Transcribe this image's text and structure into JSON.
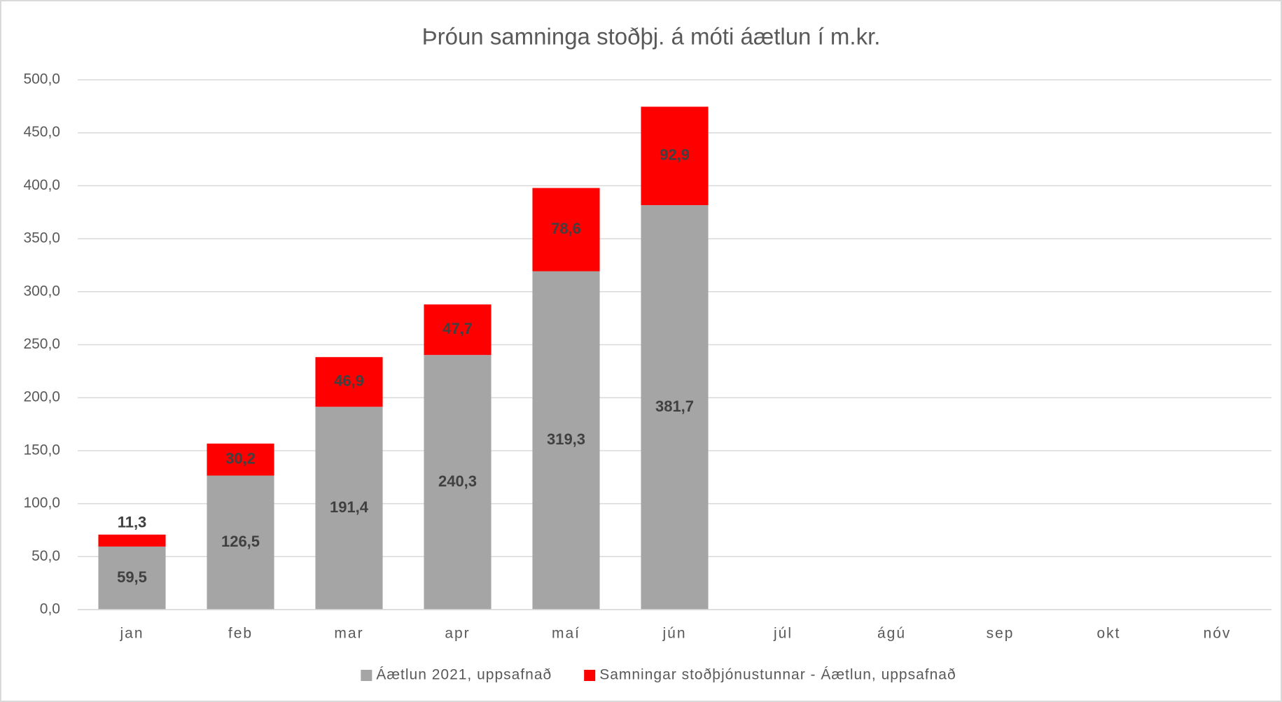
{
  "chart_data": {
    "type": "stacked_bar",
    "title": "Þróun samninga stoðþj. á móti áætlun í m.kr.",
    "categories": [
      "jan",
      "feb",
      "mar",
      "apr",
      "maí",
      "jún",
      "júl",
      "ágú",
      "sep",
      "okt",
      "nóv"
    ],
    "series": [
      {
        "name": "Áætlun 2021, uppsafnað",
        "color": "#a5a5a5",
        "values": [
          59.5,
          126.5,
          191.4,
          240.3,
          319.3,
          381.7,
          null,
          null,
          null,
          null,
          null
        ],
        "value_labels": [
          "59,5",
          "126,5",
          "191,4",
          "240,3",
          "319,3",
          "381,7",
          null,
          null,
          null,
          null,
          null
        ]
      },
      {
        "name": "Samningar stoðþjónustunnar - Áætlun, uppsafnað",
        "color": "#ff0000",
        "values": [
          11.3,
          30.2,
          46.9,
          47.7,
          78.6,
          92.9,
          null,
          null,
          null,
          null,
          null
        ],
        "value_labels": [
          "11,3",
          "30,2",
          "46,9",
          "47,7",
          "78,6",
          "92,9",
          null,
          null,
          null,
          null,
          null
        ]
      }
    ],
    "ylim": [
      0,
      500
    ],
    "yticks": [
      {
        "value": 0,
        "label": "0,0"
      },
      {
        "value": 50,
        "label": "50,0"
      },
      {
        "value": 100,
        "label": "100,0"
      },
      {
        "value": 150,
        "label": "150,0"
      },
      {
        "value": 200,
        "label": "200,0"
      },
      {
        "value": 250,
        "label": "250,0"
      },
      {
        "value": 300,
        "label": "300,0"
      },
      {
        "value": 350,
        "label": "350,0"
      },
      {
        "value": 400,
        "label": "400,0"
      },
      {
        "value": 450,
        "label": "450,0"
      },
      {
        "value": 500,
        "label": "500,0"
      }
    ],
    "grid": true,
    "legend": "bottom"
  }
}
